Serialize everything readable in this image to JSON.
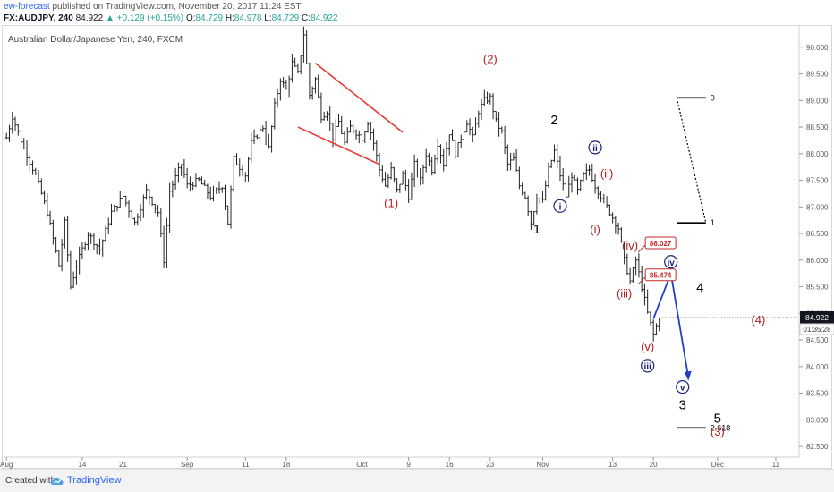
{
  "header": {
    "author": "ew-forecast",
    "published_text": "published on TradingView.com, November 20, 2017 11:24 EST",
    "symbol": "FX:AUDJPY, 240",
    "last": "84.922",
    "change": "▲ +0.129 (+0.15%)",
    "o_label": "O:",
    "o_value": "84.729",
    "h_label": "H:",
    "h_value": "84.978",
    "l_label": "L:",
    "l_value": "84.729",
    "c_label": "C:",
    "c_value": "84.922"
  },
  "footer": {
    "created_with": "Created with",
    "brand": "TradingView",
    "logo_icon": "tradingview-cloud-icon"
  },
  "colors": {
    "candle": "#222222",
    "red_wave": "#b71c1c",
    "blue_wave": "#1a237e",
    "arrow": "#1f3fc4",
    "wedge": "#e53935",
    "price_tag": "#131722"
  },
  "chart_data": {
    "type": "ohlc",
    "title": "Australian Dollar/Japanese Yen, 240, FXCM",
    "ylim": [
      82.3,
      90.4
    ],
    "y_ticks": [
      "82.500",
      "83.000",
      "83.500",
      "84.000",
      "84.500",
      "85.000",
      "85.500",
      "86.000",
      "86.500",
      "87.000",
      "87.500",
      "88.000",
      "88.500",
      "89.000",
      "89.500",
      "90.000"
    ],
    "x_ticks": [
      {
        "label": "Aug",
        "day": 0
      },
      {
        "label": "14",
        "day": 13
      },
      {
        "label": "21",
        "day": 20
      },
      {
        "label": "Sep",
        "day": 31
      },
      {
        "label": "11",
        "day": 41
      },
      {
        "label": "18",
        "day": 48
      },
      {
        "label": "Oct",
        "day": 61
      },
      {
        "label": "9",
        "day": 69
      },
      {
        "label": "16",
        "day": 76
      },
      {
        "label": "23",
        "day": 83
      },
      {
        "label": "Nov",
        "day": 92
      },
      {
        "label": "13",
        "day": 104
      },
      {
        "label": "20",
        "day": 111
      },
      {
        "label": "Dec",
        "day": 122
      },
      {
        "label": "11",
        "day": 132
      }
    ],
    "current_price": "84.922",
    "countdown": "01:35:28",
    "price_path": [
      [
        0,
        88.3
      ],
      [
        1,
        88.7
      ],
      [
        3,
        88.1
      ],
      [
        5,
        87.6
      ],
      [
        7,
        86.9
      ],
      [
        9,
        85.9
      ],
      [
        10,
        86.7
      ],
      [
        11,
        85.5
      ],
      [
        12,
        85.9
      ],
      [
        14,
        86.5
      ],
      [
        16,
        86.2
      ],
      [
        18,
        86.9
      ],
      [
        20,
        87.2
      ],
      [
        22,
        86.7
      ],
      [
        24,
        87.3
      ],
      [
        26,
        86.9
      ],
      [
        27,
        86.0
      ],
      [
        28,
        87.3
      ],
      [
        30,
        87.8
      ],
      [
        31,
        87.4
      ],
      [
        33,
        87.5
      ],
      [
        35,
        87.2
      ],
      [
        37,
        87.4
      ],
      [
        38,
        86.7
      ],
      [
        39,
        87.9
      ],
      [
        41,
        87.6
      ],
      [
        42,
        88.2
      ],
      [
        44,
        88.5
      ],
      [
        45,
        88.1
      ],
      [
        46,
        88.9
      ],
      [
        47,
        89.4
      ],
      [
        48,
        89.2
      ],
      [
        49,
        89.7
      ],
      [
        50,
        89.5
      ],
      [
        51,
        90.25
      ],
      [
        52,
        89.1
      ],
      [
        53,
        89.4
      ],
      [
        54,
        88.7
      ],
      [
        55,
        88.8
      ],
      [
        56,
        88.3
      ],
      [
        57,
        88.6
      ],
      [
        58,
        88.2
      ],
      [
        59,
        88.5
      ],
      [
        61,
        88.3
      ],
      [
        62,
        88.6
      ],
      [
        63,
        88.2
      ],
      [
        64,
        87.7
      ],
      [
        65,
        87.4
      ],
      [
        66,
        87.7
      ],
      [
        67,
        87.3
      ],
      [
        68,
        87.6
      ],
      [
        69,
        87.2
      ],
      [
        70,
        87.8
      ],
      [
        71,
        87.5
      ],
      [
        72,
        88.0
      ],
      [
        73,
        87.7
      ],
      [
        74,
        88.2
      ],
      [
        75,
        87.8
      ],
      [
        76,
        88.4
      ],
      [
        77,
        88.0
      ],
      [
        78,
        88.3
      ],
      [
        79,
        88.6
      ],
      [
        80,
        88.3
      ],
      [
        81,
        88.8
      ],
      [
        82,
        89.0
      ],
      [
        83,
        89.05
      ],
      [
        84,
        88.6
      ],
      [
        85,
        88.4
      ],
      [
        86,
        87.8
      ],
      [
        87,
        87.9
      ],
      [
        88,
        87.4
      ],
      [
        89,
        87.2
      ],
      [
        90,
        86.7
      ],
      [
        91,
        87.2
      ],
      [
        92,
        87.1
      ],
      [
        93,
        87.7
      ],
      [
        94,
        88.05
      ],
      [
        95,
        87.6
      ],
      [
        96,
        87.2
      ],
      [
        97,
        87.6
      ],
      [
        98,
        87.3
      ],
      [
        99,
        87.6
      ],
      [
        100,
        87.7
      ],
      [
        101,
        87.4
      ],
      [
        102,
        87.2
      ],
      [
        103,
        87.0
      ],
      [
        104,
        86.8
      ],
      [
        105,
        86.6
      ],
      [
        106,
        86.0
      ],
      [
        107,
        85.6
      ],
      [
        108,
        86.0
      ],
      [
        109,
        85.5
      ],
      [
        110,
        85.0
      ],
      [
        111,
        84.6
      ],
      [
        112,
        84.92
      ]
    ],
    "wedge_lines": [
      {
        "from": [
          53,
          89.7
        ],
        "to": [
          68,
          88.4
        ]
      },
      {
        "from": [
          50,
          88.5
        ],
        "to": [
          64,
          87.8
        ]
      }
    ],
    "wave_labels": [
      {
        "text": "(1)",
        "day": 66,
        "price": 87.0,
        "color": "red"
      },
      {
        "text": "(2)",
        "day": 83,
        "price": 89.7,
        "color": "red"
      },
      {
        "text": "1",
        "day": 91,
        "price": 86.5,
        "color": "black"
      },
      {
        "text": "2",
        "day": 94,
        "price": 88.55,
        "color": "black"
      },
      {
        "text": "i",
        "day": 95,
        "price": 86.95,
        "color": "blue",
        "circled": true
      },
      {
        "text": "ii",
        "day": 101,
        "price": 88.05,
        "color": "blue",
        "circled": true
      },
      {
        "text": "(i)",
        "day": 101,
        "price": 86.5,
        "color": "red"
      },
      {
        "text": "(ii)",
        "day": 103,
        "price": 87.55,
        "color": "red"
      },
      {
        "text": "(iii)",
        "day": 106,
        "price": 85.3,
        "color": "red"
      },
      {
        "text": "(iv)",
        "day": 107,
        "price": 86.2,
        "color": "red"
      },
      {
        "text": "(v)",
        "day": 110,
        "price": 84.3,
        "color": "red"
      },
      {
        "text": "iii",
        "day": 110,
        "price": 83.95,
        "color": "blue",
        "circled": true
      },
      {
        "text": "iv",
        "day": 114,
        "price": 85.9,
        "color": "blue",
        "circled": true
      },
      {
        "text": "v",
        "day": 116,
        "price": 83.55,
        "color": "blue",
        "circled": true
      },
      {
        "text": "3",
        "day": 116,
        "price": 83.2,
        "color": "black"
      },
      {
        "text": "4",
        "day": 119,
        "price": 85.4,
        "color": "black"
      },
      {
        "text": "5",
        "day": 122,
        "price": 82.95,
        "color": "black"
      },
      {
        "text": "(3)",
        "day": 122,
        "price": 82.7,
        "color": "red"
      },
      {
        "text": "(4)",
        "day": 129,
        "price": 84.8,
        "color": "red"
      }
    ],
    "price_boxes": [
      {
        "text": "86.027",
        "day": 109,
        "price": 86.35
      },
      {
        "text": "85.474",
        "day": 109,
        "price": 85.75
      }
    ],
    "projection_arrow": [
      [
        111,
        84.9
      ],
      [
        114,
        85.75
      ],
      [
        117,
        83.8
      ]
    ],
    "fib_levels": [
      {
        "label": "0",
        "price": 89.05
      },
      {
        "label": "1",
        "price": 86.7
      },
      {
        "label": "2.618",
        "price": 82.85
      }
    ]
  }
}
